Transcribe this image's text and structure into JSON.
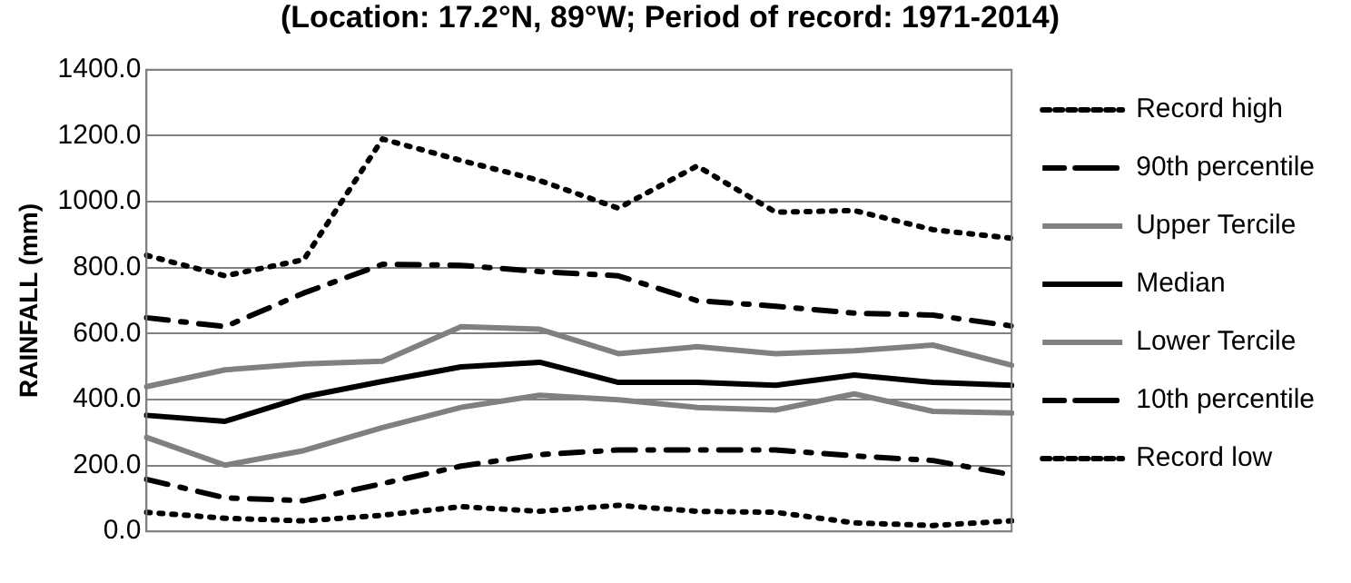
{
  "chart_data": {
    "type": "line",
    "title": "(Location: 17.2°N, 89°W; Period of record: 1971-2014)",
    "ylabel": "RAINFALL (mm)",
    "categories": [
      null,
      null,
      null,
      null,
      null,
      null,
      null,
      null,
      null,
      null,
      null,
      null
    ],
    "ylim": [
      0,
      1400
    ],
    "yticks": [
      {
        "value": 0,
        "label": "0.0"
      },
      {
        "value": 200,
        "label": "200.0"
      },
      {
        "value": 400,
        "label": "400.0"
      },
      {
        "value": 600,
        "label": "600.0"
      },
      {
        "value": 800,
        "label": "800.0"
      },
      {
        "value": 1000,
        "label": "1000.0"
      },
      {
        "value": 1200,
        "label": "1200.0"
      },
      {
        "value": 1400,
        "label": "1400.0"
      }
    ],
    "grid": "y",
    "legend": "right",
    "marker": "none",
    "series": [
      {
        "name": "Record high",
        "color": "#000000",
        "line_style": "dotted",
        "values": [
          837,
          775,
          824,
          1190,
          1125,
          1064,
          980,
          1108,
          968,
          973,
          915,
          889
        ]
      },
      {
        "name": "90th percentile",
        "color": "#000000",
        "line_style": "dashdot",
        "values": [
          648,
          621,
          723,
          810,
          807,
          788,
          775,
          700,
          683,
          662,
          656,
          623
        ]
      },
      {
        "name": "Upper Tercile",
        "color": "#808080",
        "line_style": "solid",
        "values": [
          439,
          490,
          508,
          516,
          621,
          613,
          539,
          560,
          539,
          548,
          565,
          504
        ]
      },
      {
        "name": "Median",
        "color": "#000000",
        "line_style": "solid",
        "values": [
          352,
          334,
          408,
          455,
          499,
          513,
          452,
          452,
          443,
          474,
          452,
          443
        ]
      },
      {
        "name": "Lower Tercile",
        "color": "#808080",
        "line_style": "solid",
        "values": [
          285,
          201,
          245,
          315,
          376,
          413,
          399,
          376,
          368,
          417,
          364,
          359
        ]
      },
      {
        "name": "10th percentile",
        "color": "#000000",
        "line_style": "dashdot",
        "values": [
          158,
          102,
          93,
          145,
          198,
          233,
          247,
          247,
          247,
          229,
          215,
          172
        ]
      },
      {
        "name": "Record low",
        "color": "#000000",
        "line_style": "dotted",
        "values": [
          58,
          40,
          32,
          49,
          75,
          61,
          79,
          61,
          58,
          26,
          18,
          32
        ]
      }
    ]
  }
}
